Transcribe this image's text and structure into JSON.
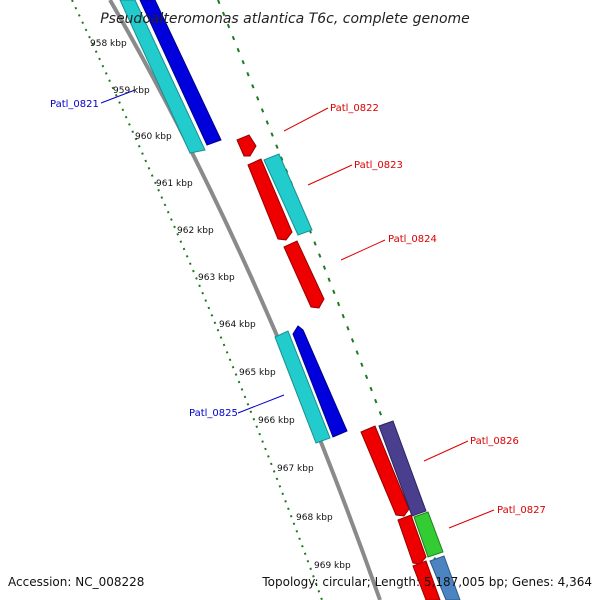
{
  "title": "Pseudoalteromonas atlantica T6c, complete genome",
  "accession": "Accession: NC_008228",
  "topology": "Topology: circular; Length: 5,187,005 bp; Genes: 4,364",
  "colors": {
    "background": "#ffffff",
    "backbone": "#8a8a8a",
    "tick_green": "#1e7a1e",
    "gene_red": "#ee0000",
    "gene_blue": "#0000dd",
    "gene_cyan": "#22cccc",
    "gene_purple": "#4a3f8f",
    "gene_green": "#33cc33",
    "gene_steelblue": "#4b84c0",
    "label_red": "#dd0000",
    "label_blue": "#0000cc"
  },
  "ticks": [
    {
      "label": "958 kbp"
    },
    {
      "label": "959 kbp"
    },
    {
      "label": "960 kbp"
    },
    {
      "label": "961 kbp"
    },
    {
      "label": "962 kbp"
    },
    {
      "label": "963 kbp"
    },
    {
      "label": "964 kbp"
    },
    {
      "label": "965 kbp"
    },
    {
      "label": "966 kbp"
    },
    {
      "label": "967 kbp"
    },
    {
      "label": "968 kbp"
    },
    {
      "label": "969 kbp"
    }
  ],
  "genes": [
    {
      "label": "Patl_0821",
      "strand": "minus",
      "color": "blue"
    },
    {
      "label": "Patl_0822",
      "strand": "plus",
      "color": "red"
    },
    {
      "label": "Patl_0823",
      "strand": "plus",
      "color": "red"
    },
    {
      "label": "Patl_0824",
      "strand": "plus",
      "color": "red"
    },
    {
      "label": "Patl_0825",
      "strand": "minus",
      "color": "blue"
    },
    {
      "label": "Patl_0826",
      "strand": "plus",
      "color": "red"
    },
    {
      "label": "Patl_0827",
      "strand": "plus",
      "color": "red"
    }
  ]
}
